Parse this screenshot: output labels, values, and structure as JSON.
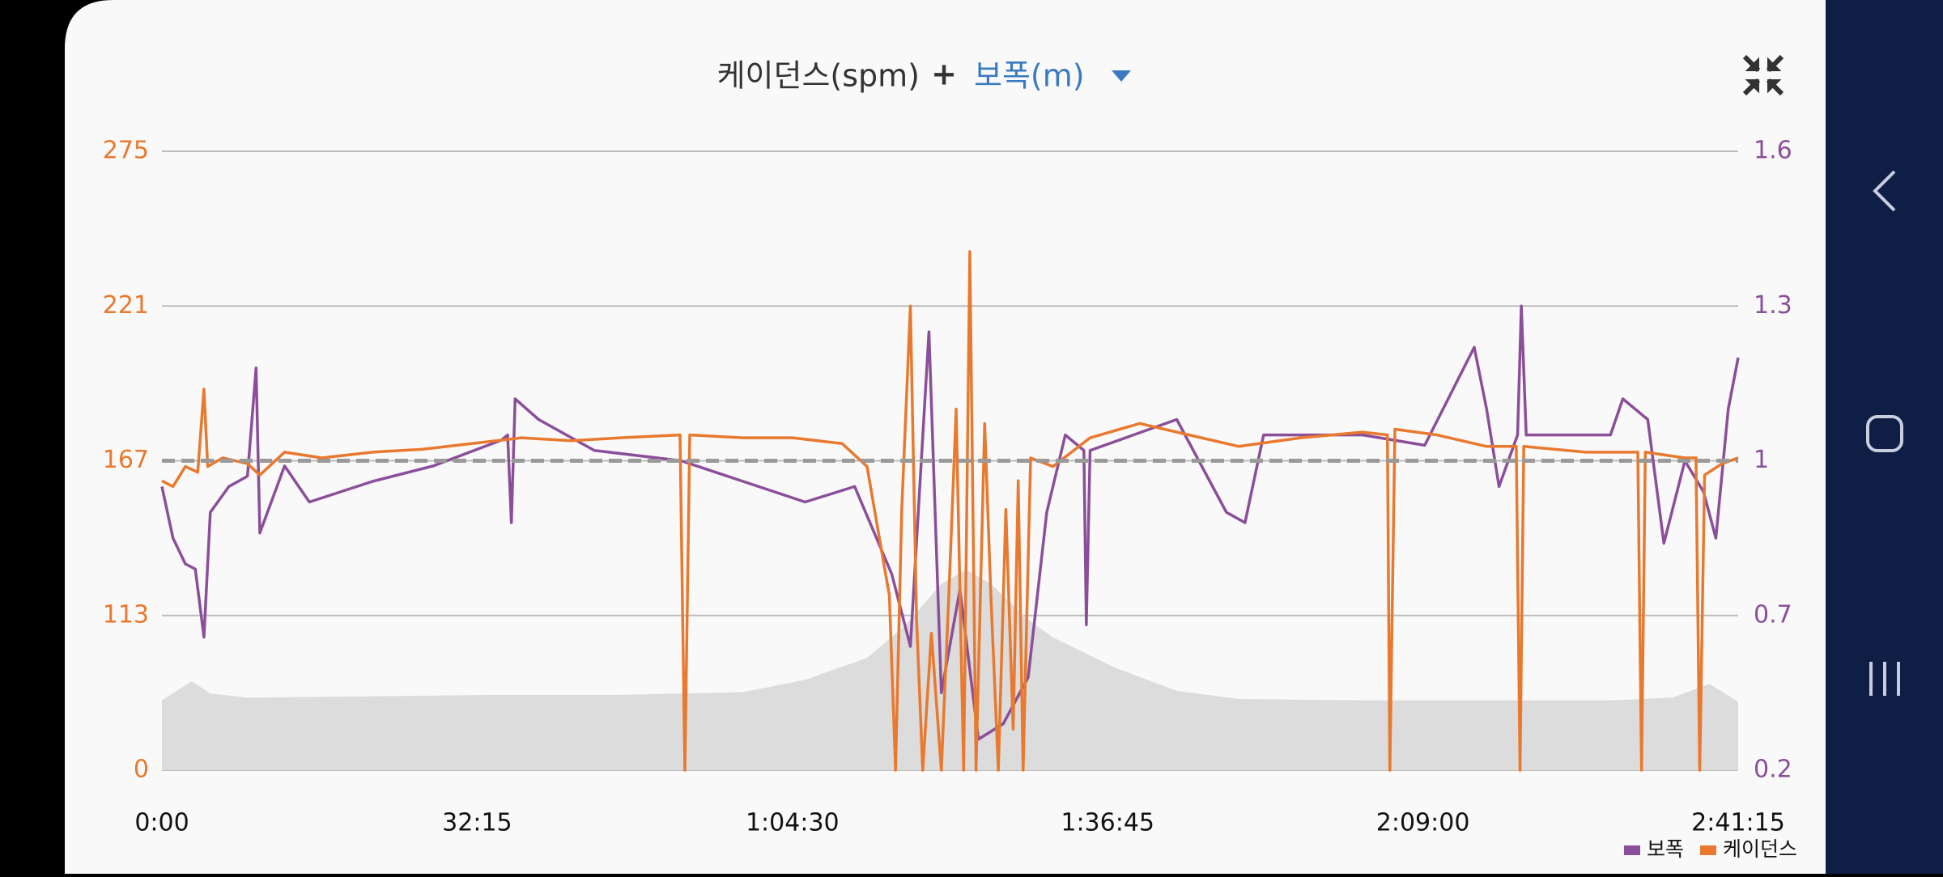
{
  "chart_data": {
    "type": "line",
    "title": "케이던스(spm)",
    "title_operator": "+",
    "title_secondary": "보폭(m)",
    "xlim": [
      0,
      9675
    ],
    "xticks": [
      {
        "value": 0,
        "label": "0:00"
      },
      {
        "value": 1935,
        "label": "32:15"
      },
      {
        "value": 3870,
        "label": "1:04:30"
      },
      {
        "value": 5805,
        "label": "1:36:45"
      },
      {
        "value": 7740,
        "label": "2:09:00"
      },
      {
        "value": 9675,
        "label": "2:41:15"
      }
    ],
    "ylim": [
      0,
      275
    ],
    "yticks": [
      0,
      113,
      167,
      221,
      275
    ],
    "y2lim": [
      0.2,
      1.6
    ],
    "y2ticks": [
      0.2,
      0.7,
      1,
      1.3,
      1.6
    ],
    "grid": true,
    "legend": "bottom-right",
    "reference_line": {
      "value": 167,
      "color": "#9a9a9a"
    },
    "series": [
      {
        "type": "area",
        "color": "#dcdcdc",
        "x": [
          0,
          183,
          297,
          525,
          1293,
          2054,
          2814,
          3567,
          3948,
          4328,
          4556,
          4784,
          4936,
          5088,
          5317,
          5469,
          5849,
          6229,
          6610,
          7370,
          8131,
          8891,
          9271,
          9499,
          9675
        ],
        "values": [
          51,
          65,
          56,
          53,
          54,
          55,
          55,
          57,
          66,
          82,
          105,
          124,
          129,
          124,
          110,
          97,
          75,
          58,
          52,
          51,
          51,
          51,
          53,
          63,
          50
        ]
      },
      {
        "name": "보폭",
        "color": "#8b4f9a",
        "axis": "y2",
        "x": [
          0,
          68,
          144,
          205,
          258,
          297,
          411,
          525,
          578,
          601,
          753,
          905,
          1293,
          1666,
          2084,
          2122,
          2145,
          2168,
          2312,
          2654,
          3187,
          3567,
          3948,
          4252,
          4480,
          4594,
          4708,
          4784,
          4898,
          5012,
          5164,
          5317,
          5431,
          5545,
          5659,
          5674,
          5697,
          6229,
          6534,
          6648,
          6762,
          7370,
          7751,
          8055,
          8131,
          8207,
          8321,
          8344,
          8374,
          8891,
          8967,
          9120,
          9219,
          9348,
          9462,
          9538,
          9614,
          9675
        ],
        "values": [
          0.95,
          0.85,
          0.8,
          0.79,
          0.63,
          0.9,
          0.95,
          0.97,
          1.18,
          0.86,
          0.99,
          0.92,
          0.96,
          0.99,
          1.04,
          1.05,
          0.88,
          1.12,
          1.08,
          1.02,
          1.0,
          0.96,
          0.92,
          0.95,
          0.78,
          0.6,
          1.25,
          0.45,
          0.75,
          0.3,
          0.35,
          0.5,
          0.9,
          1.05,
          1.02,
          0.67,
          1.02,
          1.08,
          0.9,
          0.88,
          1.05,
          1.05,
          1.03,
          1.22,
          1.1,
          0.95,
          1.05,
          1.3,
          1.05,
          1.05,
          1.12,
          1.08,
          0.84,
          1.0,
          0.94,
          0.85,
          1.1,
          1.2
        ]
      },
      {
        "name": "케이던스",
        "color": "#e8792e",
        "x": [
          0,
          68,
          144,
          220,
          258,
          281,
          373,
          525,
          601,
          753,
          981,
          1293,
          1597,
          1902,
          2206,
          2510,
          2814,
          3180,
          3210,
          3240,
          3567,
          3871,
          4175,
          4328,
          4419,
          4465,
          4503,
          4541,
          4594,
          4632,
          4670,
          4723,
          4784,
          4830,
          4875,
          4921,
          4959,
          4997,
          5050,
          5088,
          5134,
          5180,
          5225,
          5256,
          5286,
          5332,
          5469,
          5697,
          6001,
          6305,
          6610,
          6990,
          7370,
          7522,
          7537,
          7568,
          7827,
          8131,
          8313,
          8336,
          8359,
          8739,
          9059,
          9082,
          9105,
          9348,
          9416,
          9439,
          9469,
          9576,
          9675
        ],
        "values": [
          160,
          158,
          165,
          163,
          192,
          165,
          168,
          166,
          162,
          170,
          168,
          170,
          171,
          173,
          175,
          174,
          175,
          176,
          0,
          176,
          175,
          175,
          173,
          165,
          135,
          120,
          0,
          150,
          221,
          110,
          0,
          100,
          0,
          120,
          185,
          0,
          240,
          0,
          180,
          120,
          0,
          150,
          30,
          160,
          0,
          168,
          165,
          175,
          180,
          176,
          172,
          175,
          177,
          176,
          0,
          178,
          176,
          172,
          172,
          0,
          172,
          170,
          170,
          0,
          170,
          168,
          168,
          0,
          162,
          166,
          168
        ]
      }
    ]
  }
}
